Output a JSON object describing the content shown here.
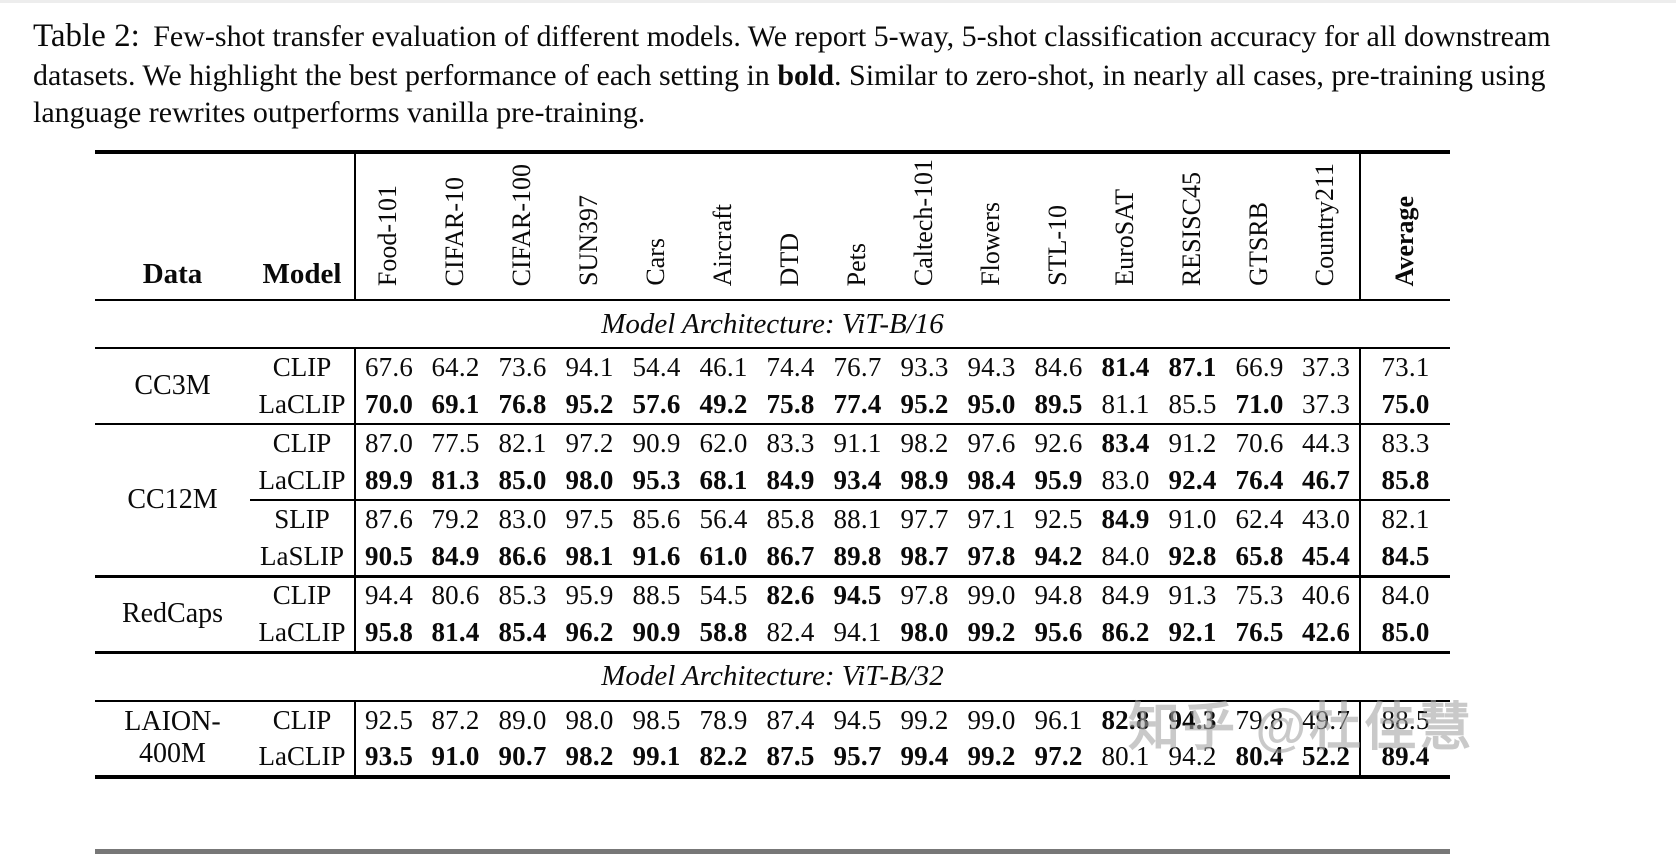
{
  "caption": {
    "label": "Table 2:",
    "text_before_bold": "Few-shot transfer evaluation of different models. We report 5-way, 5-shot classification accuracy for all downstream datasets. We highlight the best performance of each setting in ",
    "bold_word": "bold",
    "text_after_bold": ". Similar to zero-shot, in nearly all cases, pre-training using language rewrites outperforms vanilla pre-training."
  },
  "watermark": "知乎 @杜佳慧",
  "chart_data": {
    "type": "table",
    "left_headers": [
      "Data",
      "Model"
    ],
    "dataset_columns": [
      "Food-101",
      "CIFAR-10",
      "CIFAR-100",
      "SUN397",
      "Cars",
      "Aircraft",
      "DTD",
      "Pets",
      "Caltech-101",
      "Flowers",
      "STL-10",
      "EuroSAT",
      "RESISC45",
      "GTSRB",
      "Country211"
    ],
    "average_column": "Average",
    "sections": [
      {
        "architecture": "Model Architecture: ViT-B/16",
        "groups": [
          {
            "data": "CC3M",
            "rule_after": "thin",
            "subgroups": [
              [
                {
                  "model": "CLIP",
                  "values": [
                    "67.6",
                    "64.2",
                    "73.6",
                    "94.1",
                    "54.4",
                    "46.1",
                    "74.4",
                    "76.7",
                    "93.3",
                    "94.3",
                    "84.6",
                    "81.4",
                    "87.1",
                    "66.9",
                    "37.3"
                  ],
                  "bold": [
                    0,
                    0,
                    0,
                    0,
                    0,
                    0,
                    0,
                    0,
                    0,
                    0,
                    0,
                    1,
                    1,
                    0,
                    0
                  ],
                  "average": "73.1",
                  "average_bold": 0
                },
                {
                  "model": "LaCLIP",
                  "values": [
                    "70.0",
                    "69.1",
                    "76.8",
                    "95.2",
                    "57.6",
                    "49.2",
                    "75.8",
                    "77.4",
                    "95.2",
                    "95.0",
                    "89.5",
                    "81.1",
                    "85.5",
                    "71.0",
                    "37.3"
                  ],
                  "bold": [
                    1,
                    1,
                    1,
                    1,
                    1,
                    1,
                    1,
                    1,
                    1,
                    1,
                    1,
                    0,
                    0,
                    1,
                    0
                  ],
                  "average": "75.0",
                  "average_bold": 1
                }
              ]
            ]
          },
          {
            "data": "CC12M",
            "rule_after": "thick",
            "subgroups": [
              [
                {
                  "model": "CLIP",
                  "values": [
                    "87.0",
                    "77.5",
                    "82.1",
                    "97.2",
                    "90.9",
                    "62.0",
                    "83.3",
                    "91.1",
                    "98.2",
                    "97.6",
                    "92.6",
                    "83.4",
                    "91.2",
                    "70.6",
                    "44.3"
                  ],
                  "bold": [
                    0,
                    0,
                    0,
                    0,
                    0,
                    0,
                    0,
                    0,
                    0,
                    0,
                    0,
                    1,
                    0,
                    0,
                    0
                  ],
                  "average": "83.3",
                  "average_bold": 0
                },
                {
                  "model": "LaCLIP",
                  "values": [
                    "89.9",
                    "81.3",
                    "85.0",
                    "98.0",
                    "95.3",
                    "68.1",
                    "84.9",
                    "93.4",
                    "98.9",
                    "98.4",
                    "95.9",
                    "83.0",
                    "92.4",
                    "76.4",
                    "46.7"
                  ],
                  "bold": [
                    1,
                    1,
                    1,
                    1,
                    1,
                    1,
                    1,
                    1,
                    1,
                    1,
                    1,
                    0,
                    1,
                    1,
                    1
                  ],
                  "average": "85.8",
                  "average_bold": 1
                }
              ],
              [
                {
                  "model": "SLIP",
                  "values": [
                    "87.6",
                    "79.2",
                    "83.0",
                    "97.5",
                    "85.6",
                    "56.4",
                    "85.8",
                    "88.1",
                    "97.7",
                    "97.1",
                    "92.5",
                    "84.9",
                    "91.0",
                    "62.4",
                    "43.0"
                  ],
                  "bold": [
                    0,
                    0,
                    0,
                    0,
                    0,
                    0,
                    0,
                    0,
                    0,
                    0,
                    0,
                    1,
                    0,
                    0,
                    0
                  ],
                  "average": "82.1",
                  "average_bold": 0
                },
                {
                  "model": "LaSLIP",
                  "values": [
                    "90.5",
                    "84.9",
                    "86.6",
                    "98.1",
                    "91.6",
                    "61.0",
                    "86.7",
                    "89.8",
                    "98.7",
                    "97.8",
                    "94.2",
                    "84.0",
                    "92.8",
                    "65.8",
                    "45.4"
                  ],
                  "bold": [
                    1,
                    1,
                    1,
                    1,
                    1,
                    1,
                    1,
                    1,
                    1,
                    1,
                    1,
                    0,
                    1,
                    1,
                    1
                  ],
                  "average": "84.5",
                  "average_bold": 1
                }
              ]
            ]
          },
          {
            "data": "RedCaps",
            "rule_after": "thick",
            "subgroups": [
              [
                {
                  "model": "CLIP",
                  "values": [
                    "94.4",
                    "80.6",
                    "85.3",
                    "95.9",
                    "88.5",
                    "54.5",
                    "82.6",
                    "94.5",
                    "97.8",
                    "99.0",
                    "94.8",
                    "84.9",
                    "91.3",
                    "75.3",
                    "40.6"
                  ],
                  "bold": [
                    0,
                    0,
                    0,
                    0,
                    0,
                    0,
                    1,
                    1,
                    0,
                    0,
                    0,
                    0,
                    0,
                    0,
                    0
                  ],
                  "average": "84.0",
                  "average_bold": 0
                },
                {
                  "model": "LaCLIP",
                  "values": [
                    "95.8",
                    "81.4",
                    "85.4",
                    "96.2",
                    "90.9",
                    "58.8",
                    "82.4",
                    "94.1",
                    "98.0",
                    "99.2",
                    "95.6",
                    "86.2",
                    "92.1",
                    "76.5",
                    "42.6"
                  ],
                  "bold": [
                    1,
                    1,
                    1,
                    1,
                    1,
                    1,
                    0,
                    0,
                    1,
                    1,
                    1,
                    1,
                    1,
                    1,
                    1
                  ],
                  "average": "85.0",
                  "average_bold": 1
                }
              ]
            ]
          }
        ]
      },
      {
        "architecture": "Model Architecture: ViT-B/32",
        "groups": [
          {
            "data": "LAION-400M",
            "rule_after": "none",
            "subgroups": [
              [
                {
                  "model": "CLIP",
                  "values": [
                    "92.5",
                    "87.2",
                    "89.0",
                    "98.0",
                    "98.5",
                    "78.9",
                    "87.4",
                    "94.5",
                    "99.2",
                    "99.0",
                    "96.1",
                    "82.8",
                    "94.3",
                    "79.8",
                    "49.7"
                  ],
                  "bold": [
                    0,
                    0,
                    0,
                    0,
                    0,
                    0,
                    0,
                    0,
                    0,
                    0,
                    0,
                    1,
                    1,
                    0,
                    0
                  ],
                  "average": "88.5",
                  "average_bold": 0
                },
                {
                  "model": "LaCLIP",
                  "values": [
                    "93.5",
                    "91.0",
                    "90.7",
                    "98.2",
                    "99.1",
                    "82.2",
                    "87.5",
                    "95.7",
                    "99.4",
                    "99.2",
                    "97.2",
                    "80.1",
                    "94.2",
                    "80.4",
                    "52.2"
                  ],
                  "bold": [
                    1,
                    1,
                    1,
                    1,
                    1,
                    1,
                    1,
                    1,
                    1,
                    1,
                    1,
                    0,
                    0,
                    1,
                    1
                  ],
                  "average": "89.4",
                  "average_bold": 1
                }
              ]
            ]
          }
        ]
      }
    ]
  }
}
